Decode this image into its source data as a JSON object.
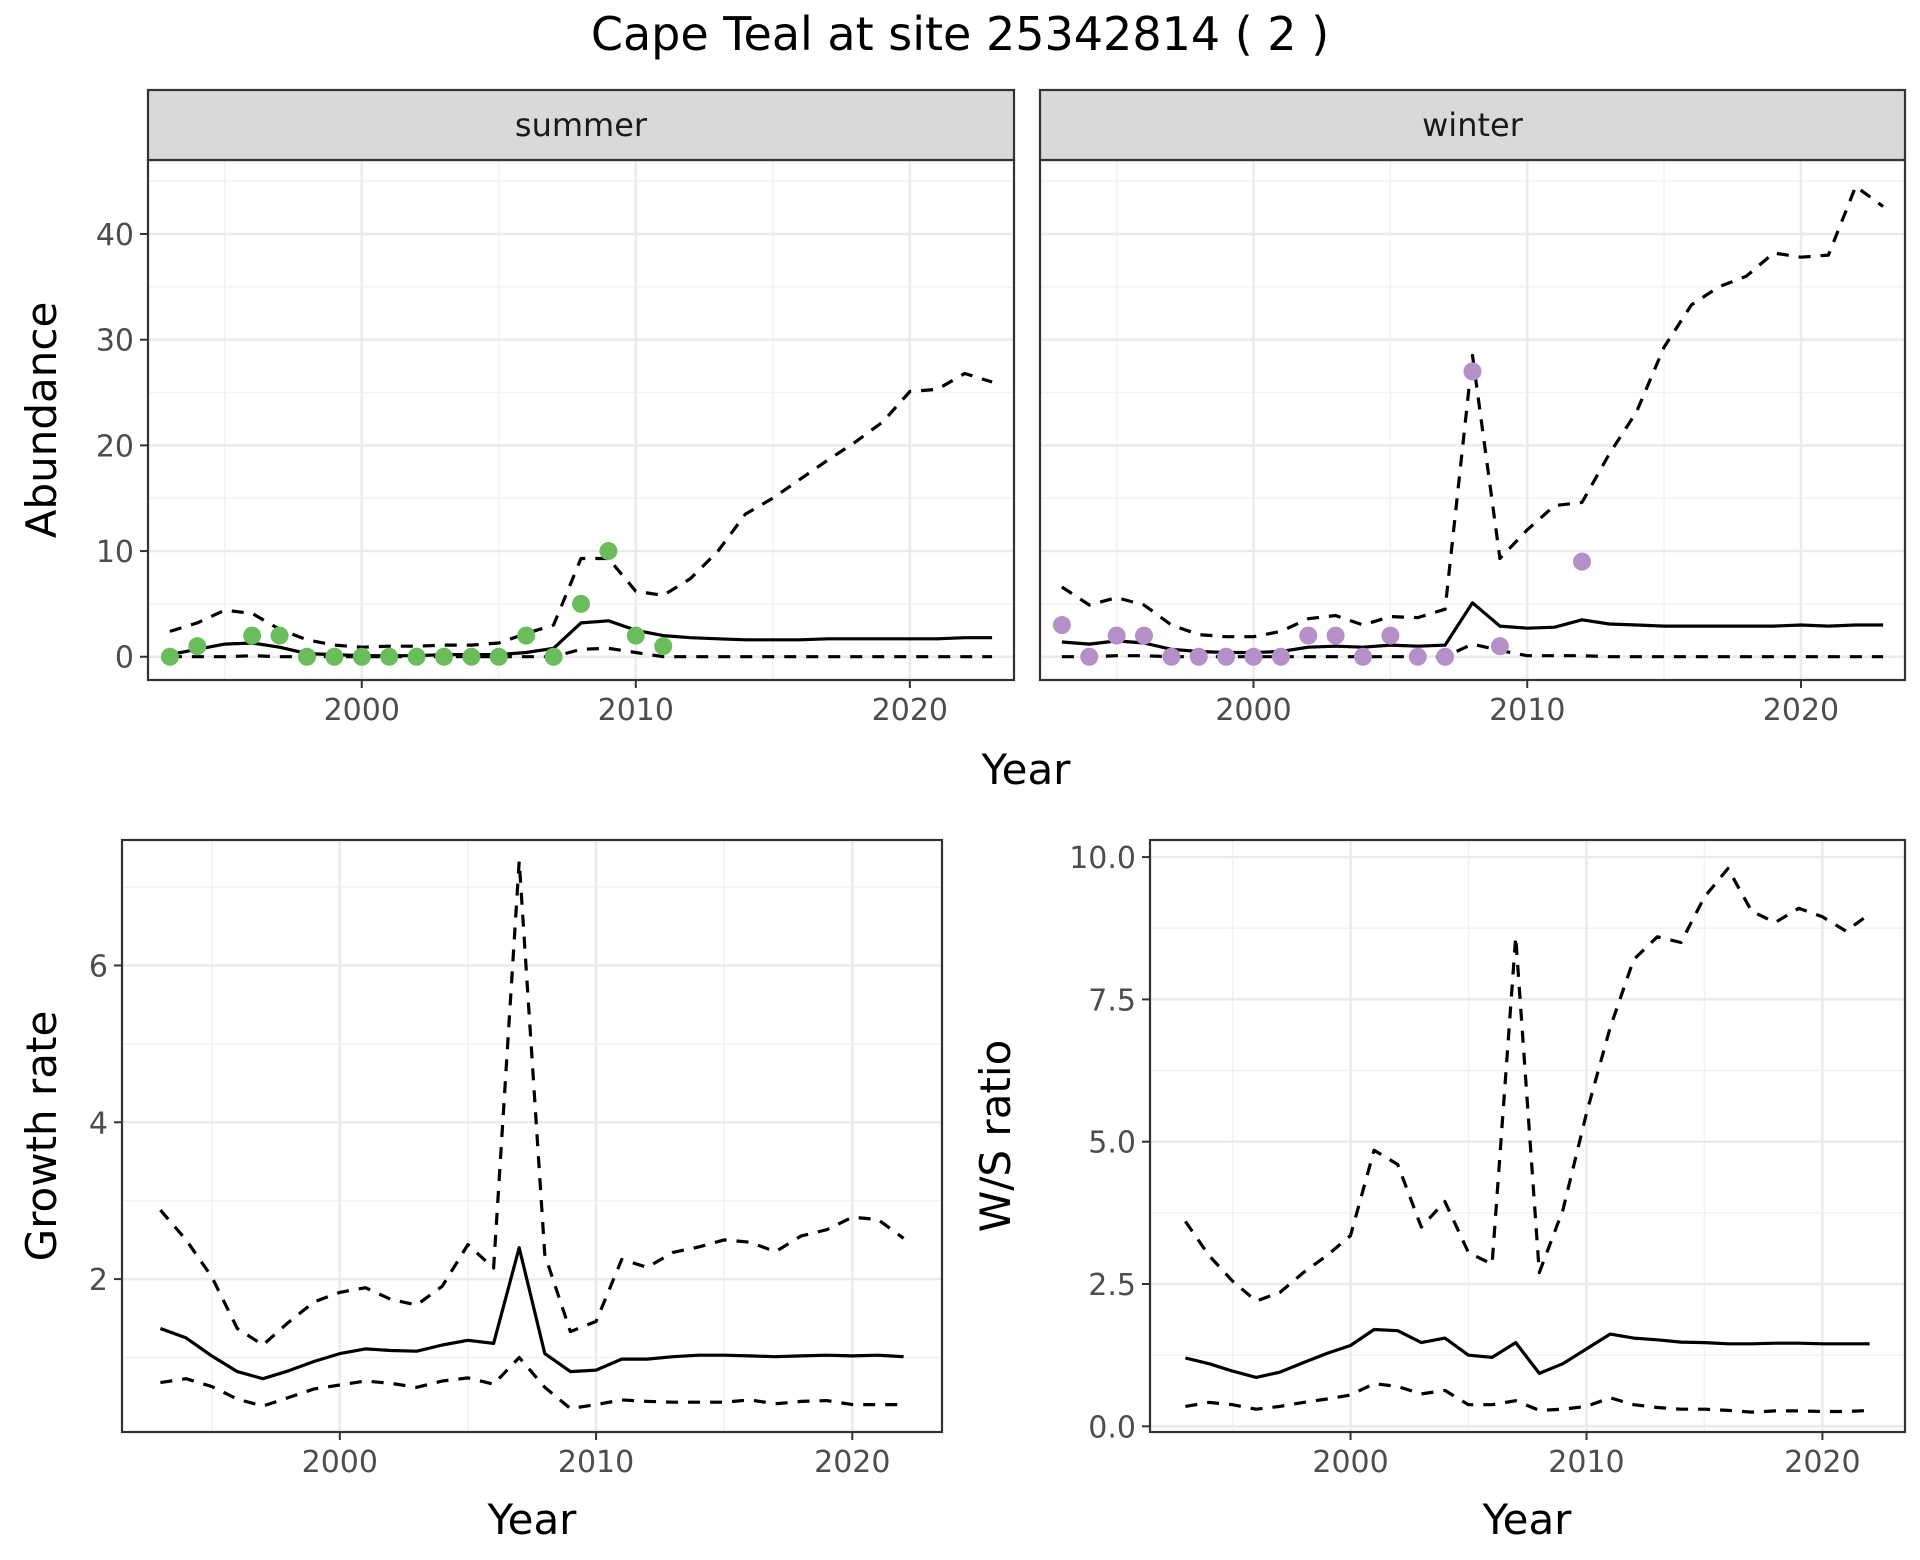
{
  "title": "Cape Teal at site 25342814 ( 2 )",
  "colors": {
    "summer_points": "#6abd5a",
    "winter_points": "#b48fc8",
    "line": "#000000",
    "strip_bg": "#d9d9d9"
  },
  "chart_data": [
    {
      "type": "scatter",
      "facet": "summer",
      "xlabel": "Year",
      "ylabel": "Abundance",
      "xticks": [
        2000,
        2010,
        2020
      ],
      "yticks": [
        0,
        10,
        20,
        30,
        40
      ],
      "xlim": [
        1992.2,
        2023.8
      ],
      "ylim": [
        -2.2,
        47
      ],
      "grid": true,
      "points": {
        "x": [
          1993,
          1994,
          1996,
          1997,
          1998,
          1999,
          2000,
          2001,
          2002,
          2003,
          2004,
          2005,
          2006,
          2007,
          2008,
          2009,
          2010,
          2011
        ],
        "y": [
          0,
          1,
          2,
          2,
          0,
          0,
          0,
          0,
          0,
          0,
          0,
          0,
          2,
          0,
          5,
          10,
          2,
          1
        ]
      },
      "series": [
        {
          "line": "solid",
          "x": [
            1993,
            1994,
            1995,
            1996,
            1997,
            1998,
            1999,
            2000,
            2001,
            2002,
            2003,
            2004,
            2005,
            2006,
            2007,
            2008,
            2009,
            2010,
            2011,
            2012,
            2013,
            2014,
            2015,
            2016,
            2017,
            2018,
            2019,
            2020,
            2021,
            2022,
            2023
          ],
          "y": [
            0.2,
            0.7,
            1.2,
            1.3,
            0.9,
            0.3,
            0.2,
            0.1,
            0.1,
            0.1,
            0.2,
            0.2,
            0.2,
            0.4,
            0.8,
            3.2,
            3.4,
            2.5,
            2.0,
            1.8,
            1.7,
            1.6,
            1.6,
            1.6,
            1.7,
            1.7,
            1.7,
            1.7,
            1.7,
            1.8,
            1.8
          ]
        },
        {
          "line": "dashed",
          "x": [
            1993,
            1994,
            1995,
            1996,
            1997,
            1998,
            1999,
            2000,
            2001,
            2002,
            2003,
            2004,
            2005,
            2006,
            2007,
            2008,
            2009,
            2010,
            2011,
            2012,
            2013,
            2014,
            2015,
            2016,
            2017,
            2018,
            2019,
            2020,
            2021,
            2022,
            2023
          ],
          "y": [
            2.4,
            3.2,
            4.4,
            4.1,
            2.6,
            1.6,
            1.1,
            0.9,
            1.0,
            1.0,
            1.1,
            1.1,
            1.3,
            2.2,
            3.0,
            9.3,
            9.3,
            6.2,
            5.8,
            7.4,
            10.0,
            13.5,
            15.0,
            16.8,
            18.6,
            20.3,
            22.2,
            25.1,
            25.3,
            26.8,
            26.0
          ]
        },
        {
          "line": "dashed",
          "x": [
            1993,
            1994,
            1995,
            1996,
            1997,
            1998,
            1999,
            2000,
            2001,
            2002,
            2003,
            2004,
            2005,
            2006,
            2007,
            2008,
            2009,
            2010,
            2011,
            2012,
            2013,
            2014,
            2015,
            2016,
            2017,
            2018,
            2019,
            2020,
            2021,
            2022,
            2023
          ],
          "y": [
            0,
            0,
            0,
            0.1,
            0,
            0,
            0,
            0,
            0,
            0,
            0,
            0,
            0,
            0,
            0,
            0.7,
            0.8,
            0.4,
            0,
            0,
            0,
            0,
            0,
            0,
            0,
            0,
            0,
            0,
            0,
            0,
            0
          ]
        }
      ]
    },
    {
      "type": "scatter",
      "facet": "winter",
      "xlabel": "Year",
      "ylabel": "Abundance",
      "xticks": [
        2000,
        2010,
        2020
      ],
      "yticks": [
        0,
        10,
        20,
        30,
        40
      ],
      "xlim": [
        1992.2,
        2023.8
      ],
      "ylim": [
        -2.2,
        47
      ],
      "grid": true,
      "points": {
        "x": [
          1993,
          1994,
          1995,
          1996,
          1997,
          1998,
          1999,
          2000,
          2001,
          2002,
          2003,
          2004,
          2005,
          2006,
          2007,
          2008,
          2009,
          2012
        ],
        "y": [
          3,
          0,
          2,
          2,
          0,
          0,
          0,
          0,
          0,
          2,
          2,
          0,
          2,
          0,
          0,
          27,
          1,
          9
        ]
      },
      "series": [
        {
          "line": "solid",
          "x": [
            1993,
            1994,
            1995,
            1996,
            1997,
            1998,
            1999,
            2000,
            2001,
            2002,
            2003,
            2004,
            2005,
            2006,
            2007,
            2008,
            2009,
            2010,
            2011,
            2012,
            2013,
            2014,
            2015,
            2016,
            2017,
            2018,
            2019,
            2020,
            2021,
            2022,
            2023
          ],
          "y": [
            1.4,
            1.2,
            1.5,
            1.3,
            0.7,
            0.5,
            0.4,
            0.4,
            0.5,
            0.9,
            1.0,
            0.9,
            1.1,
            1.0,
            1.1,
            5.1,
            2.9,
            2.7,
            2.8,
            3.5,
            3.1,
            3.0,
            2.9,
            2.9,
            2.9,
            2.9,
            2.9,
            3.0,
            2.9,
            3.0,
            3.0
          ]
        },
        {
          "line": "dashed",
          "x": [
            1993,
            1994,
            1995,
            1996,
            1997,
            1998,
            1999,
            2000,
            2001,
            2002,
            2003,
            2004,
            2005,
            2006,
            2007,
            2008,
            2009,
            2010,
            2011,
            2012,
            2013,
            2014,
            2015,
            2016,
            2017,
            2018,
            2019,
            2020,
            2021,
            2022,
            2023
          ],
          "y": [
            6.6,
            4.9,
            5.6,
            4.9,
            3.0,
            2.1,
            1.9,
            1.9,
            2.4,
            3.6,
            3.9,
            3.0,
            3.8,
            3.7,
            4.5,
            28.5,
            9.3,
            12.0,
            14.3,
            14.6,
            19.2,
            23.2,
            29.3,
            33.3,
            35.0,
            36.0,
            38.2,
            37.8,
            38.0,
            44.5,
            42.6
          ]
        },
        {
          "line": "dashed",
          "x": [
            1993,
            1994,
            1995,
            1996,
            1997,
            1998,
            1999,
            2000,
            2001,
            2002,
            2003,
            2004,
            2005,
            2006,
            2007,
            2008,
            2009,
            2010,
            2011,
            2012,
            2013,
            2014,
            2015,
            2016,
            2017,
            2018,
            2019,
            2020,
            2021,
            2022,
            2023
          ],
          "y": [
            0,
            0,
            0.1,
            0.1,
            0,
            0,
            0,
            0,
            0,
            0,
            0,
            0,
            0,
            0,
            0,
            1.2,
            0.6,
            0.1,
            0.1,
            0.1,
            0,
            0,
            0,
            0,
            0,
            0,
            0,
            0,
            0,
            0,
            0
          ]
        }
      ]
    },
    {
      "type": "line",
      "xlabel": "Year",
      "ylabel": "Growth rate",
      "xticks": [
        2000,
        2010,
        2020
      ],
      "yticks": [
        2,
        4,
        6
      ],
      "xlim": [
        1991.5,
        2023.5
      ],
      "ylim": [
        0.05,
        7.6
      ],
      "grid": true,
      "series": [
        {
          "line": "solid",
          "x": [
            1993,
            1994,
            1995,
            1996,
            1997,
            1998,
            1999,
            2000,
            2001,
            2002,
            2003,
            2004,
            2005,
            2006,
            2007,
            2008,
            2009,
            2010,
            2011,
            2012,
            2013,
            2014,
            2015,
            2016,
            2017,
            2018,
            2019,
            2020,
            2021,
            2022
          ],
          "y": [
            1.37,
            1.25,
            1.02,
            0.82,
            0.73,
            0.83,
            0.95,
            1.05,
            1.11,
            1.09,
            1.08,
            1.16,
            1.22,
            1.18,
            2.4,
            1.05,
            0.82,
            0.84,
            0.98,
            0.98,
            1.01,
            1.03,
            1.03,
            1.02,
            1.01,
            1.02,
            1.03,
            1.02,
            1.03,
            1.01
          ]
        },
        {
          "line": "dashed",
          "x": [
            1993,
            1994,
            1995,
            1996,
            1997,
            1998,
            1999,
            2000,
            2001,
            2002,
            2003,
            2004,
            2005,
            2006,
            2007,
            2008,
            2009,
            2010,
            2011,
            2012,
            2013,
            2014,
            2015,
            2016,
            2017,
            2018,
            2019,
            2020,
            2021,
            2022
          ],
          "y": [
            2.88,
            2.5,
            2.03,
            1.37,
            1.16,
            1.45,
            1.71,
            1.83,
            1.89,
            1.74,
            1.67,
            1.91,
            2.44,
            2.14,
            7.33,
            2.31,
            1.33,
            1.46,
            2.25,
            2.15,
            2.34,
            2.41,
            2.5,
            2.47,
            2.35,
            2.55,
            2.63,
            2.79,
            2.76,
            2.52
          ]
        },
        {
          "line": "dashed",
          "x": [
            1993,
            1994,
            1995,
            1996,
            1997,
            1998,
            1999,
            2000,
            2001,
            2002,
            2003,
            2004,
            2005,
            2006,
            2007,
            2008,
            2009,
            2010,
            2011,
            2012,
            2013,
            2014,
            2015,
            2016,
            2017,
            2018,
            2019,
            2020,
            2021,
            2022
          ],
          "y": [
            0.68,
            0.73,
            0.63,
            0.47,
            0.38,
            0.49,
            0.6,
            0.65,
            0.7,
            0.67,
            0.62,
            0.7,
            0.74,
            0.66,
            1.0,
            0.62,
            0.35,
            0.4,
            0.46,
            0.44,
            0.43,
            0.43,
            0.43,
            0.46,
            0.41,
            0.44,
            0.45,
            0.4,
            0.4,
            0.4
          ]
        }
      ]
    },
    {
      "type": "line",
      "xlabel": "Year",
      "ylabel": "W/S ratio",
      "xticks": [
        2000,
        2010,
        2020
      ],
      "yticks": [
        0.0,
        2.5,
        5.0,
        7.5,
        10.0
      ],
      "ytick_labels": [
        "0.0",
        "2.5",
        "5.0",
        "7.5",
        "10.0"
      ],
      "xlim": [
        1991.5,
        2023.5
      ],
      "ylim": [
        -0.1,
        10.3
      ],
      "grid": true,
      "series": [
        {
          "line": "solid",
          "x": [
            1993,
            1994,
            1995,
            1996,
            1997,
            1998,
            1999,
            2000,
            2001,
            2002,
            2003,
            2004,
            2005,
            2006,
            2007,
            2008,
            2009,
            2010,
            2011,
            2012,
            2013,
            2014,
            2015,
            2016,
            2017,
            2018,
            2019,
            2020,
            2021,
            2022
          ],
          "y": [
            1.2,
            1.1,
            0.97,
            0.86,
            0.95,
            1.12,
            1.28,
            1.42,
            1.7,
            1.68,
            1.47,
            1.55,
            1.25,
            1.21,
            1.47,
            0.93,
            1.1,
            1.36,
            1.62,
            1.55,
            1.52,
            1.48,
            1.47,
            1.45,
            1.45,
            1.46,
            1.46,
            1.45,
            1.45,
            1.45
          ]
        },
        {
          "line": "dashed",
          "x": [
            1993,
            1994,
            1995,
            1996,
            1997,
            1998,
            1999,
            2000,
            2001,
            2002,
            2003,
            2004,
            2005,
            2006,
            2007,
            2008,
            2009,
            2010,
            2011,
            2012,
            2013,
            2014,
            2015,
            2016,
            2017,
            2018,
            2019,
            2020,
            2021,
            2022
          ],
          "y": [
            3.6,
            3.0,
            2.55,
            2.2,
            2.35,
            2.7,
            3.0,
            3.35,
            4.85,
            4.6,
            3.5,
            3.95,
            3.05,
            2.85,
            8.6,
            2.7,
            3.8,
            5.5,
            7.0,
            8.2,
            8.6,
            8.5,
            9.3,
            9.8,
            9.05,
            8.85,
            9.1,
            8.95,
            8.7,
            9.0
          ]
        },
        {
          "line": "dashed",
          "x": [
            1993,
            1994,
            1995,
            1996,
            1997,
            1998,
            1999,
            2000,
            2001,
            2002,
            2003,
            2004,
            2005,
            2006,
            2007,
            2008,
            2009,
            2010,
            2011,
            2012,
            2013,
            2014,
            2015,
            2016,
            2017,
            2018,
            2019,
            2020,
            2021,
            2022
          ],
          "y": [
            0.35,
            0.42,
            0.38,
            0.3,
            0.35,
            0.42,
            0.48,
            0.55,
            0.75,
            0.7,
            0.57,
            0.63,
            0.38,
            0.38,
            0.45,
            0.28,
            0.3,
            0.35,
            0.5,
            0.38,
            0.33,
            0.3,
            0.3,
            0.28,
            0.25,
            0.27,
            0.27,
            0.26,
            0.26,
            0.28
          ]
        }
      ]
    }
  ]
}
